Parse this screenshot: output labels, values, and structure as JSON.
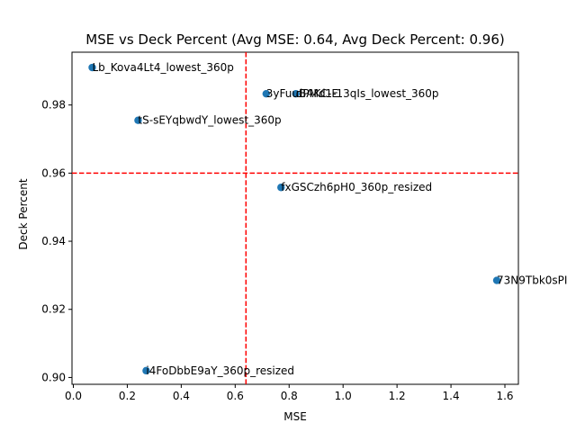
{
  "chart_data": {
    "type": "scatter",
    "title": "MSE vs Deck Percent (Avg MSE: 0.64, Avg Deck Percent: 0.96)",
    "xlabel": "MSE",
    "ylabel": "Deck Percent",
    "xlim": [
      -0.005,
      1.65
    ],
    "ylim": [
      0.898,
      0.9955
    ],
    "xticks": [
      0.0,
      0.2,
      0.4,
      0.6,
      0.8,
      1.0,
      1.2,
      1.4,
      1.6
    ],
    "xtick_labels": [
      "0.0",
      "0.2",
      "0.4",
      "0.6",
      "0.8",
      "1.0",
      "1.2",
      "1.4",
      "1.6"
    ],
    "yticks": [
      0.9,
      0.92,
      0.94,
      0.96,
      0.98
    ],
    "ytick_labels": [
      "0.90",
      "0.92",
      "0.94",
      "0.96",
      "0.98"
    ],
    "grid": false,
    "marker_color": "#1f77b4",
    "reference_line_color": "#ff0000",
    "avg_mse": 0.64,
    "avg_deck_percent": 0.96,
    "points": [
      {
        "label": "Lb_Kova4Lt4_lowest_360p",
        "x": 0.07,
        "y": 0.991
      },
      {
        "label": "tS-sEYqbwdY_lowest_360p",
        "x": 0.24,
        "y": 0.9755
      },
      {
        "label": "3yFuuBAKC-E",
        "x": 0.715,
        "y": 0.9833
      },
      {
        "label": "dPMd1-13qIs_lowest_360p",
        "x": 0.825,
        "y": 0.9833
      },
      {
        "label": "fxGSCzh6pH0_360p_resized",
        "x": 0.77,
        "y": 0.9558
      },
      {
        "label": "73N9Tbk0sPI",
        "x": 1.57,
        "y": 0.9285
      },
      {
        "label": "i4FoDbbE9aY_360p_resized",
        "x": 0.27,
        "y": 0.902
      }
    ]
  }
}
